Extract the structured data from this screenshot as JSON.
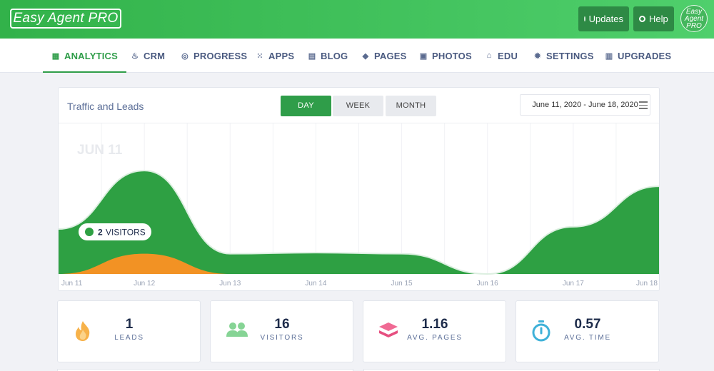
{
  "header": {
    "logo_text": "Easy Agent PRO",
    "updates_label": "Updates",
    "help_label": "Help",
    "avatar_text": "Easy Agent PRO"
  },
  "nav": {
    "items": [
      {
        "label": "ANALYTICS",
        "icon": "grid-icon",
        "active": true
      },
      {
        "label": "CRM",
        "icon": "flame-icon"
      },
      {
        "label": "PROGRESS",
        "icon": "spiral-icon"
      },
      {
        "label": "APPS",
        "icon": "apps-grid-icon"
      },
      {
        "label": "BLOG",
        "icon": "newspaper-icon"
      },
      {
        "label": "PAGES",
        "icon": "layers-icon"
      },
      {
        "label": "PHOTOS",
        "icon": "camera-icon"
      },
      {
        "label": "EDU",
        "icon": "institution-icon"
      },
      {
        "label": "SETTINGS",
        "icon": "gear-icon"
      },
      {
        "label": "UPGRADES",
        "icon": "store-icon"
      }
    ]
  },
  "chart_card": {
    "title": "Traffic and Leads",
    "tabs": [
      "DAY",
      "WEEK",
      "MONTH"
    ],
    "active_tab": "DAY",
    "date_range": "June 11, 2020 - June 18, 2020",
    "watermark": "JUN 11",
    "tooltip_value": "2",
    "tooltip_label": "VISITORS"
  },
  "chart_data": {
    "type": "area",
    "x": [
      "Jun 11",
      "Jun 12",
      "Jun 13",
      "Jun 14",
      "Jun 15",
      "Jun 16",
      "Jun 17",
      "Jun 18"
    ],
    "series": [
      {
        "name": "Visitors",
        "color": "#2ea043",
        "values": [
          2,
          4.6,
          0.9,
          0.95,
          0.9,
          0,
          2.1,
          3.9
        ]
      },
      {
        "name": "Leads",
        "color": "#f29224",
        "values": [
          0,
          0.9,
          0,
          0,
          0,
          0,
          0,
          0
        ]
      }
    ],
    "ylim": [
      0,
      6.7
    ],
    "grid": true
  },
  "stats": [
    {
      "value": "1",
      "label": "LEADS",
      "icon": "flame-icon",
      "color": "#f7a13a"
    },
    {
      "value": "16",
      "label": "VISITORS",
      "icon": "users-icon",
      "color": "#7ccf8a"
    },
    {
      "value": "1.16",
      "label": "AVG. PAGES",
      "icon": "layers-icon",
      "color": "#ea5b87"
    },
    {
      "value": "0.57",
      "label": "AVG. TIME",
      "icon": "stopwatch-icon",
      "color": "#3fb1d8"
    }
  ]
}
